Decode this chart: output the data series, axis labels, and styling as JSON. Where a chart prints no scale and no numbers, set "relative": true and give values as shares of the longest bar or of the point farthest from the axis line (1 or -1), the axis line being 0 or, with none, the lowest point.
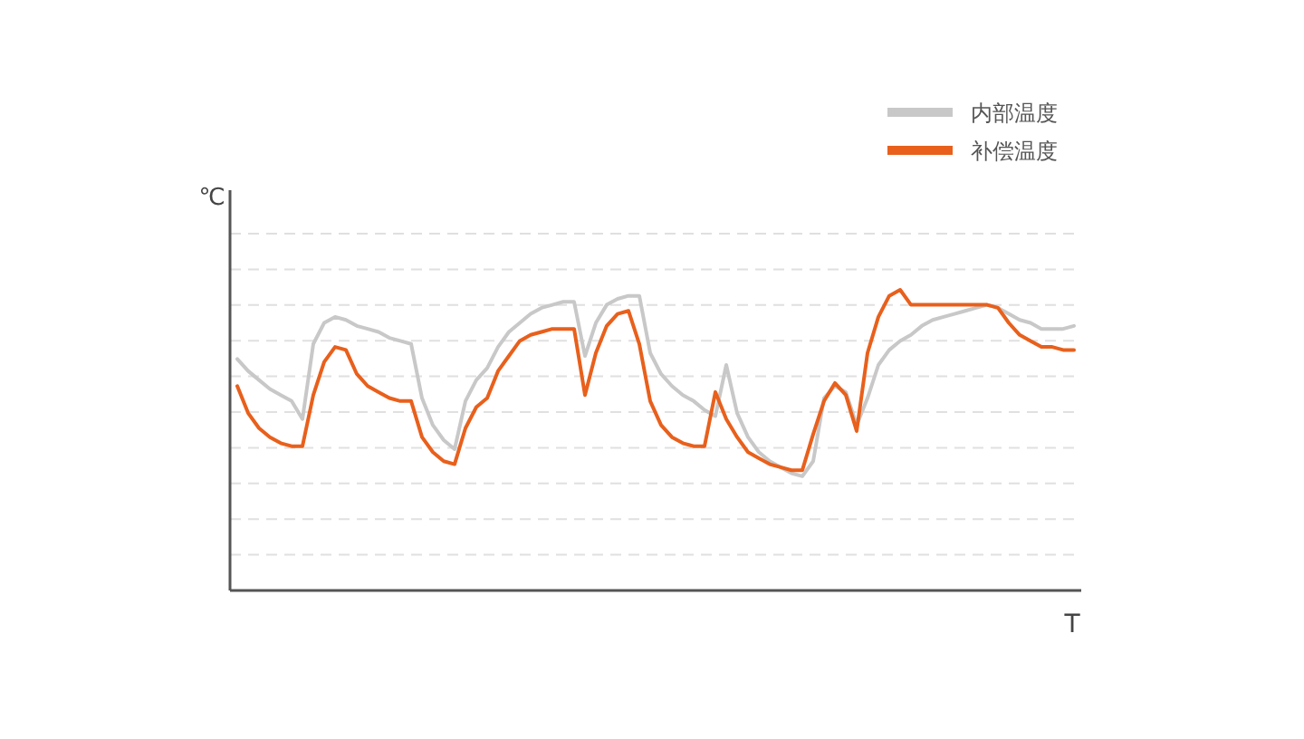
{
  "chart_data": {
    "type": "line",
    "relative": true,
    "xlabel": "T",
    "ylabel": "℃",
    "grid": true,
    "legend": "top right",
    "marker": "none",
    "line_style": "solid",
    "categories": [
      null,
      null,
      null,
      null,
      null,
      null,
      null,
      null,
      null,
      null,
      null,
      null,
      null,
      null,
      null,
      null,
      null,
      null,
      null,
      null,
      null,
      null,
      null,
      null,
      null,
      null,
      null,
      null,
      null,
      null,
      null,
      null,
      null,
      null,
      null,
      null,
      null,
      null,
      null,
      null,
      null,
      null,
      null,
      null,
      null,
      null,
      null,
      null,
      null,
      null,
      null,
      null,
      null,
      null,
      null,
      null,
      null,
      null,
      null,
      null,
      null,
      null,
      null,
      null,
      null,
      null,
      null,
      null,
      null,
      null,
      null,
      null,
      null,
      null,
      null,
      null,
      null,
      null
    ],
    "series": [
      {
        "name": "内部温度",
        "color": "#c8c8c8",
        "values": [
          0.77,
          0.73,
          0.7,
          0.67,
          0.65,
          0.63,
          0.57,
          0.82,
          0.89,
          0.91,
          0.9,
          0.88,
          0.87,
          0.86,
          0.84,
          0.83,
          0.82,
          0.64,
          0.55,
          0.5,
          0.47,
          0.63,
          0.7,
          0.74,
          0.81,
          0.86,
          0.89,
          0.92,
          0.94,
          0.95,
          0.96,
          0.96,
          0.78,
          0.89,
          0.95,
          0.97,
          0.98,
          0.98,
          0.79,
          0.72,
          0.68,
          0.65,
          0.63,
          0.6,
          0.58,
          0.75,
          0.59,
          0.51,
          0.46,
          0.43,
          0.41,
          0.39,
          0.38,
          0.43,
          0.64,
          0.68,
          0.66,
          0.55,
          0.64,
          0.75,
          0.8,
          0.83,
          0.85,
          0.88,
          0.9,
          0.91,
          0.92,
          0.93,
          0.94,
          0.95,
          0.94,
          0.92,
          0.9,
          0.89,
          0.87,
          0.87,
          0.87,
          0.88
        ]
      },
      {
        "name": "补偿温度",
        "color": "#e8601c",
        "values": [
          0.68,
          0.59,
          0.54,
          0.51,
          0.49,
          0.48,
          0.48,
          0.65,
          0.76,
          0.81,
          0.8,
          0.72,
          0.68,
          0.66,
          0.64,
          0.63,
          0.63,
          0.51,
          0.46,
          0.43,
          0.42,
          0.54,
          0.61,
          0.64,
          0.73,
          0.78,
          0.83,
          0.85,
          0.86,
          0.87,
          0.87,
          0.87,
          0.65,
          0.79,
          0.88,
          0.92,
          0.93,
          0.82,
          0.63,
          0.55,
          0.51,
          0.49,
          0.48,
          0.48,
          0.66,
          0.57,
          0.51,
          0.46,
          0.44,
          0.42,
          0.41,
          0.4,
          0.4,
          0.52,
          0.63,
          0.69,
          0.65,
          0.53,
          0.79,
          0.91,
          0.98,
          1,
          0.95,
          0.95,
          0.95,
          0.95,
          0.95,
          0.95,
          0.95,
          0.95,
          0.94,
          0.89,
          0.85,
          0.83,
          0.81,
          0.81,
          0.8,
          0.8
        ]
      }
    ]
  }
}
